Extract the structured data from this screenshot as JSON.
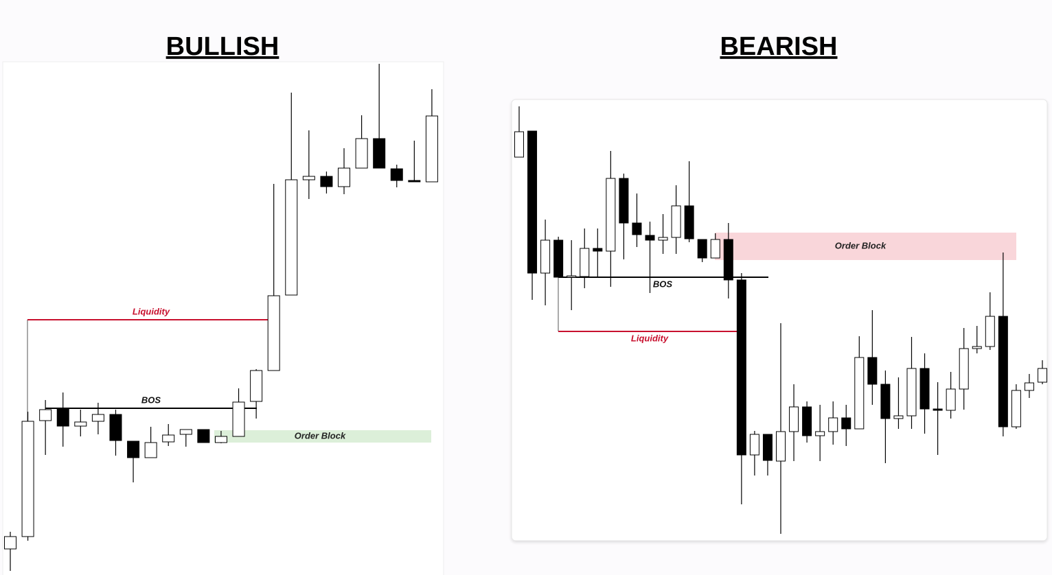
{
  "chart_data": [
    {
      "type": "candlestick",
      "title": "BULLISH",
      "ylim": [
        0,
        838
      ],
      "up_color": "#ffffff",
      "down_color": "#000000",
      "open": [
        38,
        56,
        225,
        243,
        217,
        224,
        234,
        195,
        171,
        194,
        205,
        212,
        193,
        202,
        253,
        298,
        408,
        576,
        581,
        566,
        593,
        636,
        592,
        575,
        573
      ],
      "high": [
        63,
        238,
        255,
        266,
        241,
        251,
        241,
        195,
        216,
        220,
        212,
        212,
        210,
        272,
        300,
        570,
        703,
        648,
        588,
        622,
        670,
        745,
        598,
        633,
        708
      ],
      "low": [
        6,
        50,
        175,
        187,
        202,
        205,
        174,
        135,
        171,
        188,
        187,
        193,
        192,
        202,
        228,
        298,
        408,
        548,
        556,
        555,
        593,
        593,
        565,
        573,
        573
      ],
      "close": [
        56,
        224,
        241,
        217,
        223,
        234,
        196,
        171,
        193,
        204,
        212,
        193,
        202,
        252,
        298,
        407,
        576,
        581,
        566,
        593,
        636,
        593,
        575,
        573,
        669
      ],
      "annotations": [
        {
          "type": "line",
          "label": "Liquidity",
          "value": 372,
          "color": "#c8102e"
        },
        {
          "type": "line",
          "label": "BOS",
          "value": 243,
          "color": "#000000"
        },
        {
          "type": "zone",
          "label": "Order Block",
          "range": [
            193,
            211
          ],
          "color": "#dcefd9"
        }
      ]
    },
    {
      "type": "candlestick",
      "title": "BEARISH",
      "ylim": [
        0,
        838
      ],
      "up_color": "#ffffff",
      "down_color": "#000000",
      "open": [
        609,
        647,
        440,
        488,
        434,
        435,
        476,
        472,
        578,
        513,
        495,
        488,
        492,
        538,
        489,
        462,
        489,
        430,
        175,
        205,
        166,
        209,
        245,
        203,
        209,
        229,
        213,
        317,
        278,
        228,
        232,
        301,
        242,
        240,
        271,
        330,
        333,
        377,
        216,
        269,
        281
      ],
      "high": [
        683,
        647,
        518,
        493,
        488,
        505,
        505,
        618,
        585,
        556,
        515,
        526,
        568,
        603,
        489,
        498,
        513,
        440,
        210,
        205,
        367,
        278,
        253,
        248,
        253,
        248,
        348,
        386,
        298,
        288,
        347,
        323,
        281,
        296,
        360,
        363,
        412,
        470,
        278,
        293,
        313
      ],
      "low": [
        609,
        401,
        393,
        434,
        386,
        418,
        435,
        420,
        460,
        478,
        411,
        468,
        468,
        485,
        456,
        462,
        403,
        103,
        145,
        145,
        60,
        166,
        193,
        166,
        190,
        188,
        213,
        248,
        163,
        213,
        213,
        206,
        175,
        228,
        241,
        323,
        328,
        202,
        213,
        258,
        278
      ],
      "close": [
        646,
        440,
        488,
        434,
        436,
        476,
        472,
        578,
        513,
        496,
        488,
        492,
        538,
        490,
        462,
        489,
        430,
        175,
        205,
        167,
        209,
        245,
        203,
        209,
        229,
        213,
        317,
        278,
        228,
        232,
        301,
        242,
        240,
        271,
        330,
        333,
        377,
        216,
        269,
        280,
        301
      ],
      "annotations": [
        {
          "type": "line",
          "label": "BOS",
          "value": 434,
          "color": "#000000"
        },
        {
          "type": "line",
          "label": "Liquidity",
          "value": 355,
          "color": "#c8102e"
        },
        {
          "type": "zone",
          "label": "Order Block",
          "range": [
            459,
            499
          ],
          "color": "#f9d6da"
        }
      ]
    }
  ]
}
